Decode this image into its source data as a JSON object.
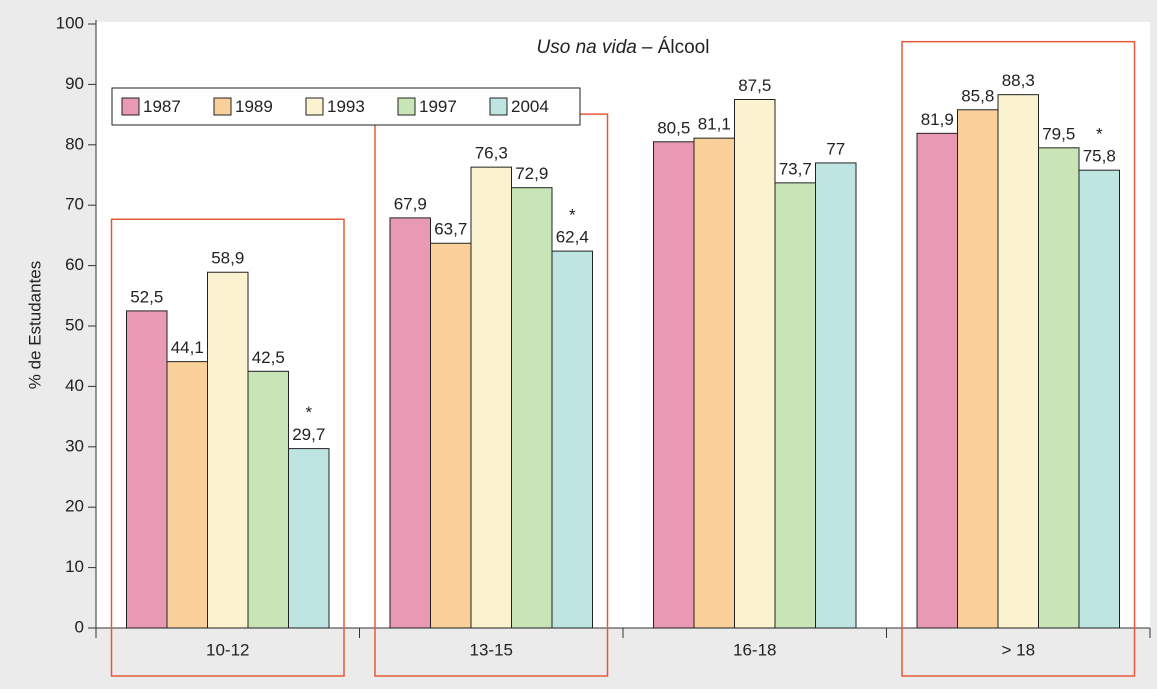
{
  "chart_data": {
    "type": "bar",
    "title": [
      "Uso na vida",
      "– Álcool"
    ],
    "y_label": "% de Estudantes",
    "categories": [
      "10-12",
      "13-15",
      "16-18",
      "> 18"
    ],
    "series": [
      {
        "name": "1987",
        "color": "#e899b4",
        "values": [
          52.5,
          67.9,
          80.5,
          81.9
        ],
        "value_labels": [
          "52,5",
          "67,9",
          "80,5",
          "81,9"
        ]
      },
      {
        "name": "1989",
        "color": "#f9cf9a",
        "values": [
          44.1,
          63.7,
          81.1,
          85.8
        ],
        "value_labels": [
          "44,1",
          "63,7",
          "81,1",
          "85,8"
        ]
      },
      {
        "name": "1993",
        "color": "#fbf2cf",
        "values": [
          58.9,
          76.3,
          87.5,
          88.3
        ],
        "value_labels": [
          "58,9",
          "76,3",
          "87,5",
          "88,3"
        ]
      },
      {
        "name": "1997",
        "color": "#c8e5b8",
        "values": [
          42.5,
          72.9,
          73.7,
          79.5
        ],
        "value_labels": [
          "42,5",
          "72,9",
          "73,7",
          "79,5"
        ]
      },
      {
        "name": "2004",
        "color": "#bfe5e3",
        "values": [
          29.7,
          62.4,
          77,
          75.8
        ],
        "value_labels": [
          "29,7",
          "62,4",
          "77",
          "75,8"
        ],
        "value_notes": [
          "*",
          "*",
          null,
          "*"
        ]
      }
    ],
    "ylim": [
      0,
      100
    ],
    "yticks": [
      0,
      10,
      20,
      30,
      40,
      50,
      60,
      70,
      80,
      90,
      100
    ],
    "legend": "upper left",
    "highlighted_categories": [
      0,
      1,
      3
    ],
    "highlight_color": "#e8593a"
  }
}
